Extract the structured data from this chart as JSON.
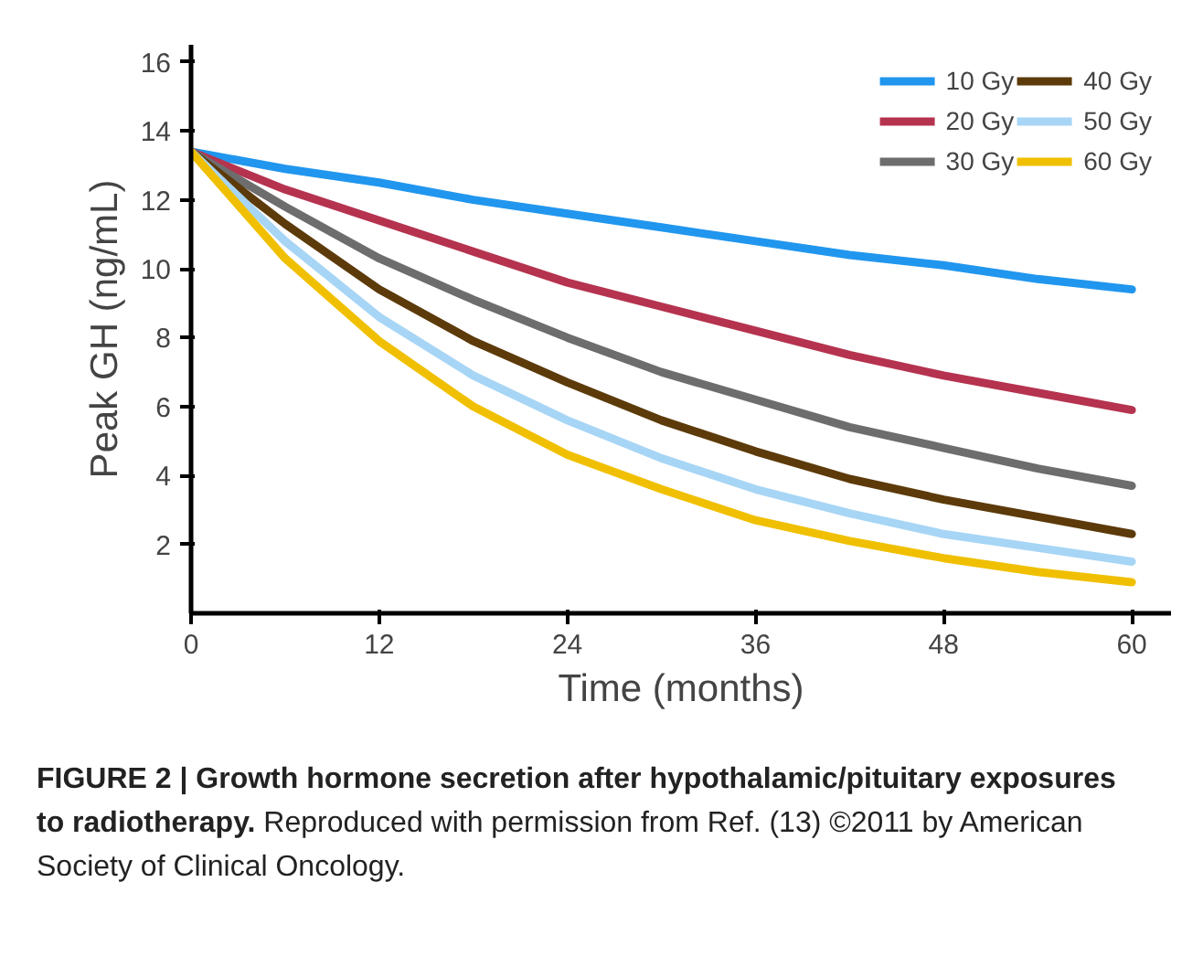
{
  "chart_data": {
    "type": "line",
    "title": "FIGURE 2 | Growth hormone secretion after hypothalamic/pituitary exposures to radiotherapy.",
    "annotations": [
      "Reproduced with permission from Ref. (13) ©2011 by American Society of Clinical Oncology."
    ],
    "xlabel": "Time (months)",
    "ylabel": "Peak GH (ng/mL)",
    "x": [
      0,
      6,
      12,
      18,
      24,
      30,
      36,
      42,
      48,
      54,
      60
    ],
    "xlim": [
      0,
      62.5
    ],
    "ylim": [
      0,
      16.5
    ],
    "xticks": [
      0,
      12,
      24,
      36,
      48,
      60
    ],
    "yticks": [
      2,
      4,
      6,
      8,
      10,
      12,
      14,
      16
    ],
    "legend": "top right",
    "series": [
      {
        "name": "10 Gy",
        "color": "#2196ee",
        "values": [
          13.4,
          12.9,
          12.5,
          12.0,
          11.6,
          11.2,
          10.8,
          10.4,
          10.1,
          9.7,
          9.4
        ]
      },
      {
        "name": "20 Gy",
        "color": "#b5334f",
        "values": [
          13.4,
          12.3,
          11.4,
          10.5,
          9.6,
          8.9,
          8.2,
          7.5,
          6.9,
          6.4,
          5.9
        ]
      },
      {
        "name": "30 Gy",
        "color": "#6d6d6d",
        "values": [
          13.4,
          11.8,
          10.3,
          9.1,
          8.0,
          7.0,
          6.2,
          5.4,
          4.8,
          4.2,
          3.7
        ]
      },
      {
        "name": "40 Gy",
        "color": "#5c3a0a",
        "values": [
          13.4,
          11.3,
          9.4,
          7.9,
          6.7,
          5.6,
          4.7,
          3.9,
          3.3,
          2.8,
          2.3
        ]
      },
      {
        "name": "50 Gy",
        "color": "#a7d5f5",
        "values": [
          13.4,
          10.8,
          8.6,
          6.9,
          5.6,
          4.5,
          3.6,
          2.9,
          2.3,
          1.9,
          1.5
        ]
      },
      {
        "name": "60 Gy",
        "color": "#f0c000",
        "values": [
          13.4,
          10.3,
          7.9,
          6.0,
          4.6,
          3.6,
          2.7,
          2.1,
          1.6,
          1.2,
          0.9
        ]
      }
    ]
  }
}
